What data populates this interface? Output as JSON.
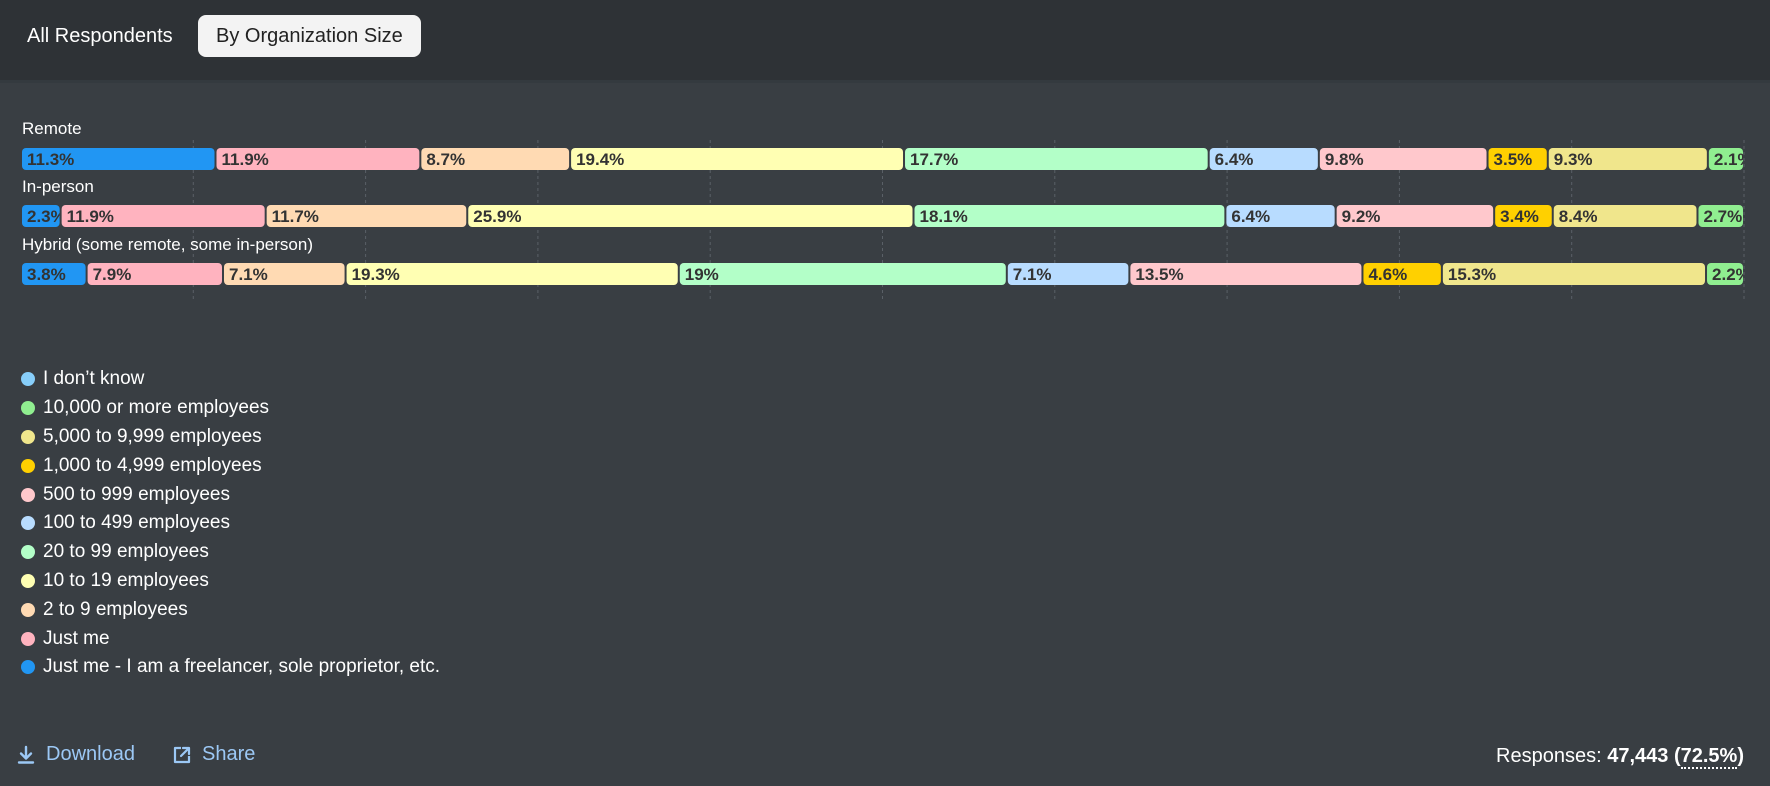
{
  "tabs": [
    {
      "label": "All Respondents",
      "active": false
    },
    {
      "label": "By Organization Size",
      "active": true
    }
  ],
  "chart_data": {
    "type": "bar",
    "orientation": "horizontal",
    "stacked": true,
    "percent_scale": [
      0,
      100
    ],
    "grid": true,
    "legend_position": "bottom-left",
    "categories": [
      "Remote",
      "In-person",
      "Hybrid (some remote, some in-person)"
    ],
    "series": [
      {
        "name": "Just me - I am a freelancer, sole proprietor, etc.",
        "color": "#2196f3",
        "values": [
          11.3,
          2.3,
          3.8
        ]
      },
      {
        "name": "Just me",
        "color": "#ffb3bf",
        "values": [
          11.9,
          11.9,
          7.9
        ]
      },
      {
        "name": "2 to 9 employees",
        "color": "#ffdab3",
        "values": [
          8.7,
          11.7,
          7.1
        ]
      },
      {
        "name": "10 to 19 employees",
        "color": "#ffffb3",
        "values": [
          19.4,
          25.9,
          19.3
        ]
      },
      {
        "name": "20 to 99 employees",
        "color": "#b3ffc8",
        "values": [
          17.7,
          18.1,
          19
        ]
      },
      {
        "name": "100 to 499 employees",
        "color": "#b8dcff",
        "values": [
          6.4,
          6.4,
          7.1
        ]
      },
      {
        "name": "500 to 999 employees",
        "color": "#ffc8cc",
        "values": [
          9.8,
          9.2,
          13.5
        ]
      },
      {
        "name": "1,000 to 4,999 employees",
        "color": "#ffd000",
        "values": [
          3.5,
          3.4,
          4.6
        ]
      },
      {
        "name": "5,000 to 9,999 employees",
        "color": "#f0e68c",
        "values": [
          9.3,
          8.4,
          15.3
        ]
      },
      {
        "name": "10,000 or more employees",
        "color": "#90ee90",
        "values": [
          2.1,
          2.7,
          2.2
        ]
      },
      {
        "name": "I don’t know",
        "color": "#87cefa",
        "values": [
          0,
          0,
          0
        ]
      }
    ]
  },
  "legend": [
    {
      "label": "I don’t know",
      "color": "#87cefa"
    },
    {
      "label": "10,000 or more employees",
      "color": "#90ee90"
    },
    {
      "label": "5,000 to 9,999 employees",
      "color": "#f0e68c"
    },
    {
      "label": "1,000 to 4,999 employees",
      "color": "#ffd000"
    },
    {
      "label": "500 to 999 employees",
      "color": "#ffc8cc"
    },
    {
      "label": "100 to 499 employees",
      "color": "#b8dcff"
    },
    {
      "label": "20 to 99 employees",
      "color": "#b3ffc8"
    },
    {
      "label": "10 to 19 employees",
      "color": "#ffffb3"
    },
    {
      "label": "2 to 9 employees",
      "color": "#ffdab3"
    },
    {
      "label": "Just me",
      "color": "#ffb3bf"
    },
    {
      "label": "Just me - I am a freelancer, sole proprietor, etc.",
      "color": "#2196f3"
    }
  ],
  "footer": {
    "download_label": "Download",
    "download_icon": "download-icon",
    "share_label": "Share",
    "share_icon": "share-icon",
    "responses_label": "Responses:",
    "responses_count": "47,443",
    "responses_pct": "72.5%"
  }
}
